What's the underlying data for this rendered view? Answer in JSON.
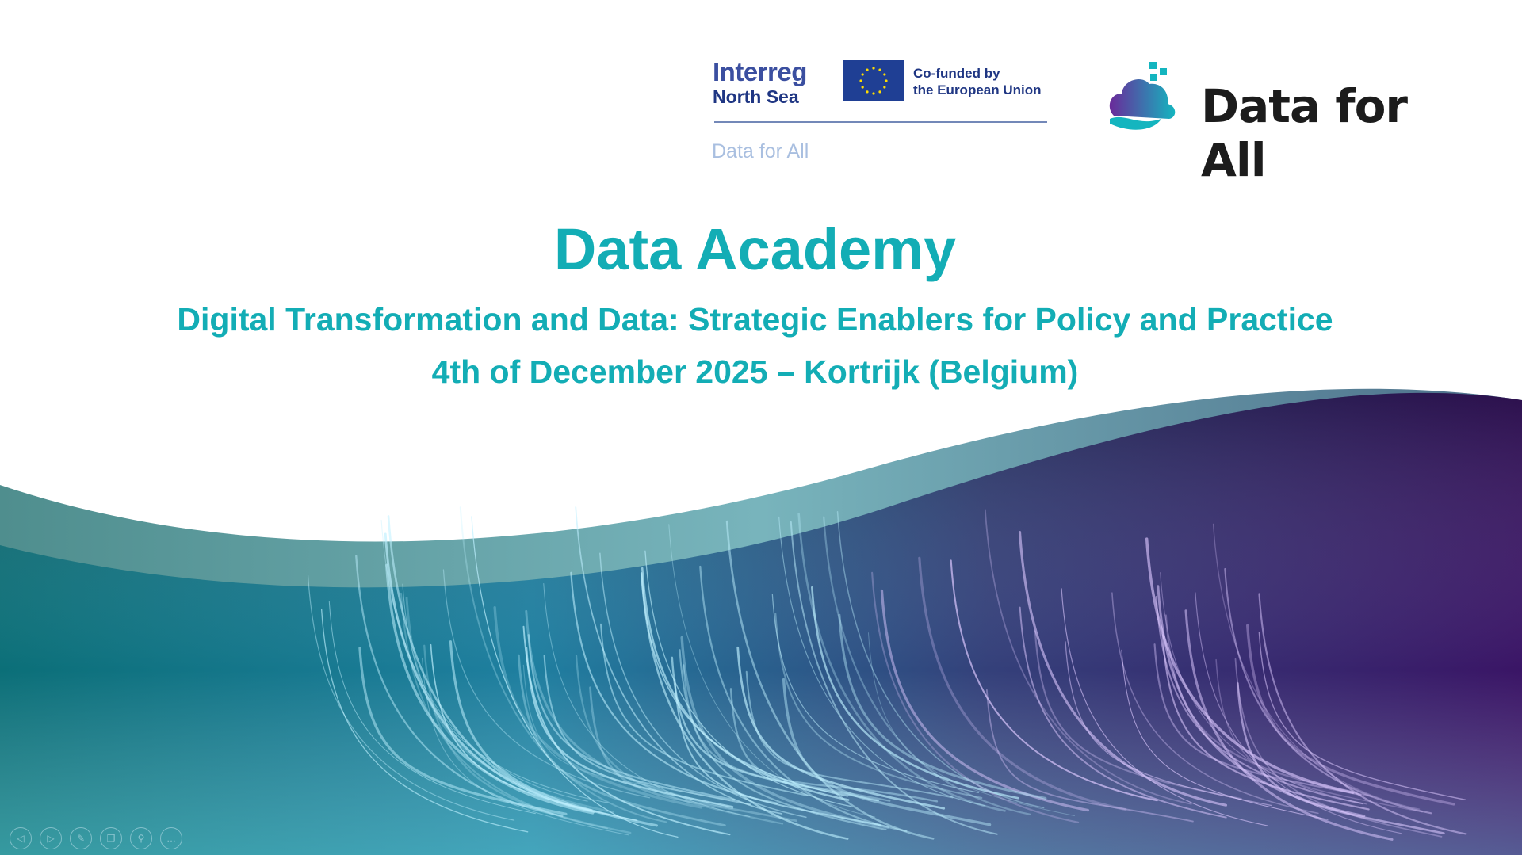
{
  "logos": {
    "interreg_line1": "Interreg",
    "interreg_line2": "North Sea",
    "eu_line1": "Co-funded by",
    "eu_line2": "the European Union",
    "programme_project": "Data for All",
    "project_logo_text": "Data for All"
  },
  "slide": {
    "title": "Data Academy",
    "subtitle": "Digital Transformation and Data: Strategic Enablers for Policy and Practice",
    "date_location": "4th of December 2025 – Kortrijk (Belgium)"
  },
  "colors": {
    "accent": "#13adb5",
    "teal": "#0f8f9a",
    "purple": "#4a1a7a",
    "eu_blue": "#1f3f94"
  },
  "controls": [
    {
      "icon": "previous-icon",
      "glyph": "◁"
    },
    {
      "icon": "next-icon",
      "glyph": "▷"
    },
    {
      "icon": "pen-icon",
      "glyph": "✎"
    },
    {
      "icon": "slides-icon",
      "glyph": "❐"
    },
    {
      "icon": "zoom-icon",
      "glyph": "⚲"
    },
    {
      "icon": "more-icon",
      "glyph": "…"
    }
  ]
}
